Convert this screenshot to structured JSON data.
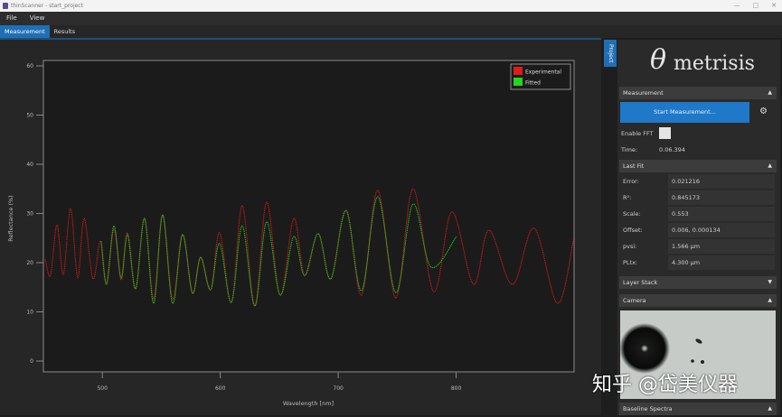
{
  "window": {
    "title": "thinScanner - start_project",
    "controls": [
      "—",
      "□",
      "✕"
    ]
  },
  "menu": [
    "File",
    "View"
  ],
  "tabs": [
    {
      "label": "Measurement",
      "active": true
    },
    {
      "label": "Results",
      "active": false
    }
  ],
  "side_tab": "Project",
  "logo": {
    "symbol": "θ",
    "text": "metrisis"
  },
  "measurement": {
    "header": "Measurement",
    "start_button": "Start Measurement...",
    "enable_fft_label": "Enable FFT",
    "enable_fft_checked": false,
    "time_label": "Time:",
    "time_value": "0.06.394"
  },
  "last_fit": {
    "header": "Last Fit",
    "rows": [
      {
        "label": "Error:",
        "value": "0.021216"
      },
      {
        "label": "R²:",
        "value": "0.845173"
      },
      {
        "label": "Scale:",
        "value": "0.553"
      },
      {
        "label": "Offset:",
        "value": "0.006, 0.000134"
      },
      {
        "label": "pvsi:",
        "value": "1.566 µm"
      },
      {
        "label": "PLtx:",
        "value": "4.300 µm"
      }
    ]
  },
  "layer_stack": {
    "header": "Layer Stack"
  },
  "camera": {
    "header": "Camera"
  },
  "baseline": {
    "header": "Baseline Spectra"
  },
  "watermark": "知乎 @岱美仪器",
  "colors": {
    "accent": "#1f78c8",
    "experimental": "#e01b1b",
    "fitted": "#22d622"
  },
  "chart_data": {
    "type": "line",
    "xlabel": "Wavelength [nm]",
    "ylabel": "Reflectance (%)",
    "xlim": [
      450,
      900
    ],
    "ylim": [
      -2,
      61
    ],
    "xticks": [
      500,
      600,
      700,
      800
    ],
    "yticks": [
      0,
      10,
      20,
      30,
      40,
      50,
      60
    ],
    "grid": false,
    "legend": "top-right",
    "series": [
      {
        "name": "Experimental",
        "color": "#e01b1b",
        "x": [
          451.5,
          456.1,
          461.5,
          466.9,
          473.0,
          479.1,
          484.5,
          492.1,
          498.3,
          503.6,
          509.8,
          515.9,
          521.3,
          528.2,
          535.8,
          543.5,
          551.1,
          559.6,
          568.0,
          576.4,
          583.3,
          591.8,
          599.4,
          609.4,
          618.6,
          629.3,
          639.3,
          650.8,
          662.3,
          671.5,
          683.0,
          693.7,
          706.7,
          719.7,
          733.5,
          748.9,
          763.4,
          781.0,
          796.4,
          814.8,
          827.8,
          847.7,
          866.1,
          886.0,
          899.8
        ],
        "y": [
          20.7,
          17.4,
          27.7,
          17.6,
          31.0,
          16.9,
          29.0,
          16.7,
          24.4,
          15.8,
          26.8,
          16.5,
          26.1,
          14.7,
          29.0,
          12.5,
          29.7,
          12.5,
          25.7,
          13.8,
          21.1,
          14.5,
          26.1,
          11.9,
          31.6,
          11.2,
          32.3,
          13.4,
          29.0,
          17.4,
          25.9,
          16.7,
          30.6,
          13.4,
          34.7,
          12.8,
          35.0,
          14.1,
          30.3,
          15.6,
          26.6,
          15.6,
          27.0,
          11.7,
          25.0
        ]
      },
      {
        "name": "Fitted",
        "color": "#22d622",
        "x": [
          499.0,
          503.6,
          509.8,
          515.9,
          521.3,
          528.2,
          535.8,
          543.5,
          551.1,
          559.6,
          568.0,
          576.4,
          583.3,
          591.8,
          599.4,
          609.4,
          618.6,
          629.3,
          639.3,
          650.8,
          662.3,
          671.5,
          683.0,
          693.7,
          706.7,
          719.7,
          733.5,
          748.9,
          763.4,
          778.7,
          800.2
        ],
        "y": [
          24.4,
          15.6,
          27.5,
          16.9,
          25.7,
          14.7,
          29.0,
          11.7,
          29.7,
          11.7,
          25.7,
          13.8,
          21.1,
          14.5,
          23.9,
          11.9,
          27.5,
          11.2,
          28.3,
          13.4,
          25.3,
          17.4,
          25.9,
          16.7,
          30.6,
          14.3,
          33.4,
          13.9,
          31.9,
          19.1,
          25.3
        ]
      }
    ]
  }
}
